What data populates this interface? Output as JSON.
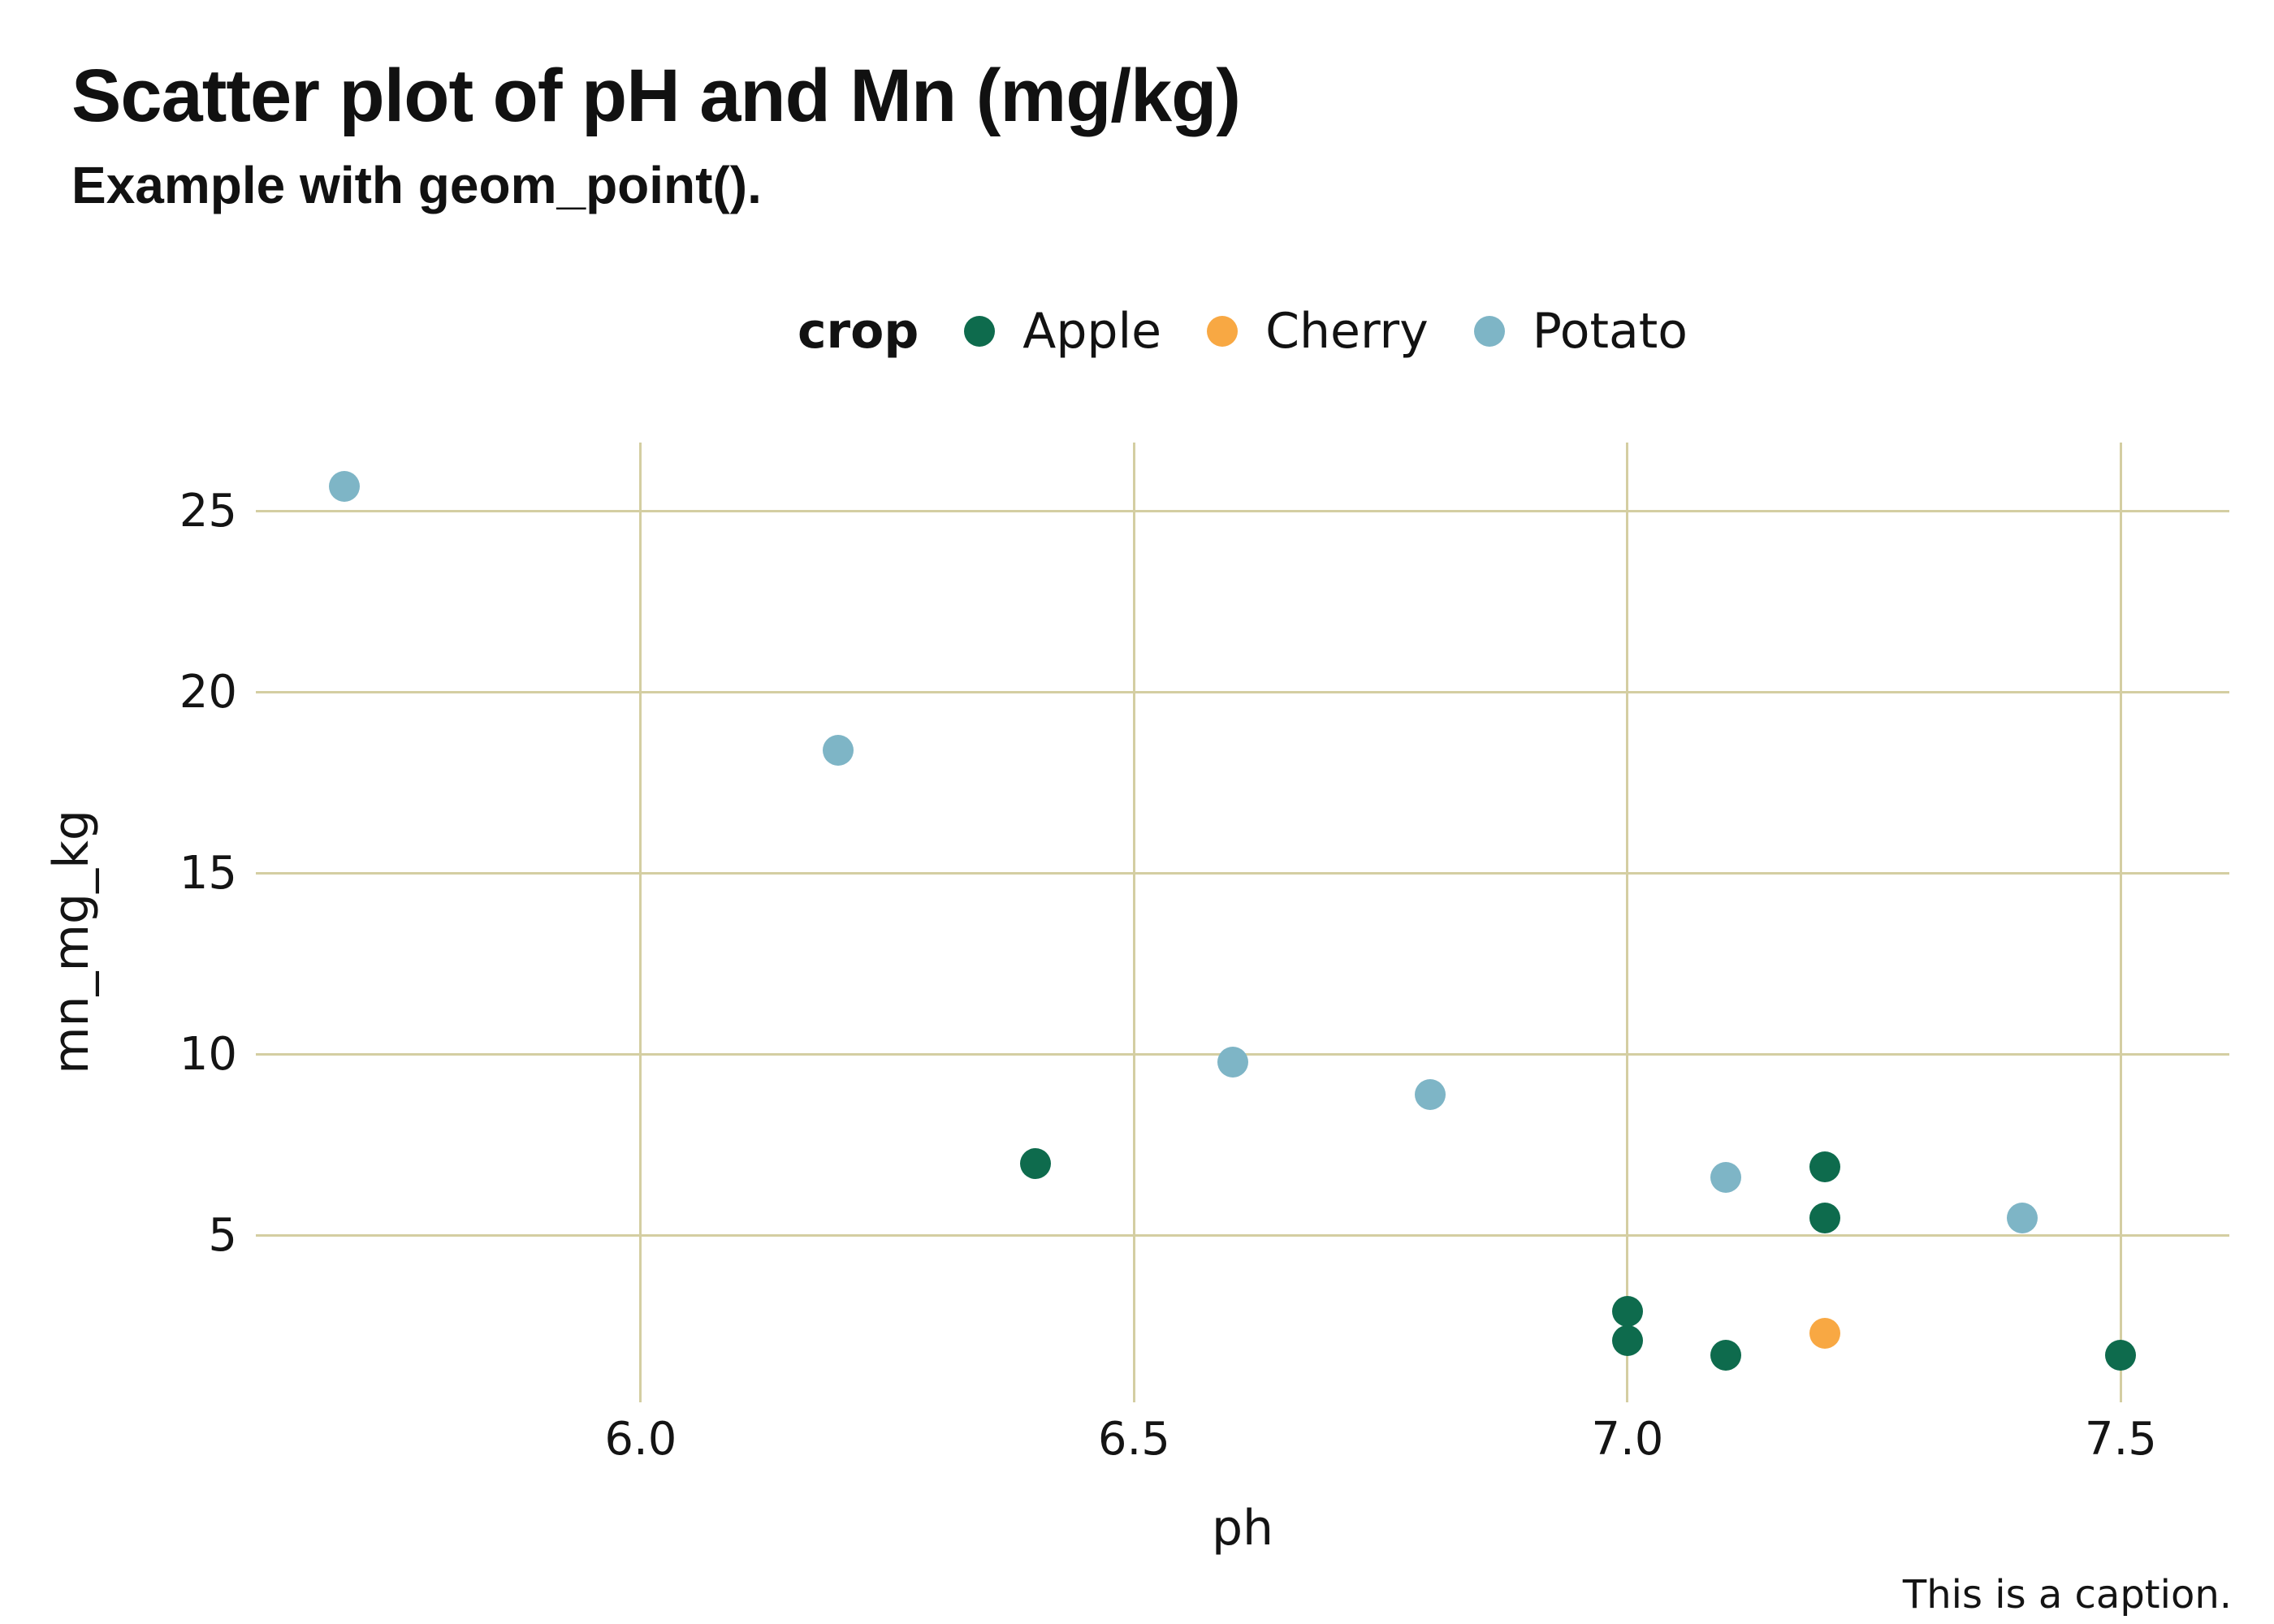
{
  "header": {
    "title": "Scatter plot of pH and Mn (mg/kg)",
    "subtitle": "Example with geom_point()."
  },
  "legend": {
    "title": "crop",
    "entries": [
      {
        "label": "Apple",
        "color": "#0E6B4D"
      },
      {
        "label": "Cherry",
        "color": "#F8A843"
      },
      {
        "label": "Potato",
        "color": "#7EB5C6"
      }
    ]
  },
  "axes": {
    "x": {
      "label": "ph",
      "ticks": [
        {
          "label": "6.0",
          "value": 6.0
        },
        {
          "label": "6.5",
          "value": 6.5
        },
        {
          "label": "7.0",
          "value": 7.0
        },
        {
          "label": "7.5",
          "value": 7.5
        }
      ]
    },
    "y": {
      "label": "mn_mg_kg",
      "ticks": [
        {
          "label": "25",
          "value": 25
        },
        {
          "label": "20",
          "value": 20
        },
        {
          "label": "15",
          "value": 15
        },
        {
          "label": "10",
          "value": 10
        },
        {
          "label": "5",
          "value": 5
        }
      ]
    }
  },
  "caption": "This is a caption.",
  "colors": {
    "gridline": "#D4CEA2",
    "background": "#FFFFFF",
    "text": "#141414",
    "apple": "#0E6B4D",
    "cherry": "#F8A843",
    "potato": "#7EB5C6"
  },
  "chart_data": {
    "type": "scatter",
    "title": "Scatter plot of pH and Mn (mg/kg)",
    "subtitle": "Example with geom_point().",
    "xlabel": "ph",
    "ylabel": "mn_mg_kg",
    "legend_title": "crop",
    "legend_position": "top-center",
    "grid": true,
    "xlim": [
      5.61,
      7.61
    ],
    "ylim": [
      0.4,
      26.9
    ],
    "x_ticks": [
      6.0,
      6.5,
      7.0,
      7.5
    ],
    "y_ticks": [
      5,
      10,
      15,
      20,
      25
    ],
    "series": [
      {
        "name": "Apple",
        "color": "#0E6B4D",
        "points": [
          {
            "ph": 6.4,
            "mn_mg_kg": 7.0
          },
          {
            "ph": 7.0,
            "mn_mg_kg": 2.9
          },
          {
            "ph": 7.0,
            "mn_mg_kg": 2.1
          },
          {
            "ph": 7.1,
            "mn_mg_kg": 1.7
          },
          {
            "ph": 7.2,
            "mn_mg_kg": 6.9
          },
          {
            "ph": 7.2,
            "mn_mg_kg": 5.5
          },
          {
            "ph": 7.5,
            "mn_mg_kg": 1.7
          }
        ]
      },
      {
        "name": "Cherry",
        "color": "#F8A843",
        "points": [
          {
            "ph": 7.2,
            "mn_mg_kg": 2.3
          }
        ]
      },
      {
        "name": "Potato",
        "color": "#7EB5C6",
        "points": [
          {
            "ph": 5.7,
            "mn_mg_kg": 25.7
          },
          {
            "ph": 6.2,
            "mn_mg_kg": 18.4
          },
          {
            "ph": 6.6,
            "mn_mg_kg": 9.8
          },
          {
            "ph": 6.8,
            "mn_mg_kg": 8.9
          },
          {
            "ph": 7.1,
            "mn_mg_kg": 6.6
          },
          {
            "ph": 7.4,
            "mn_mg_kg": 5.5
          }
        ]
      }
    ]
  }
}
